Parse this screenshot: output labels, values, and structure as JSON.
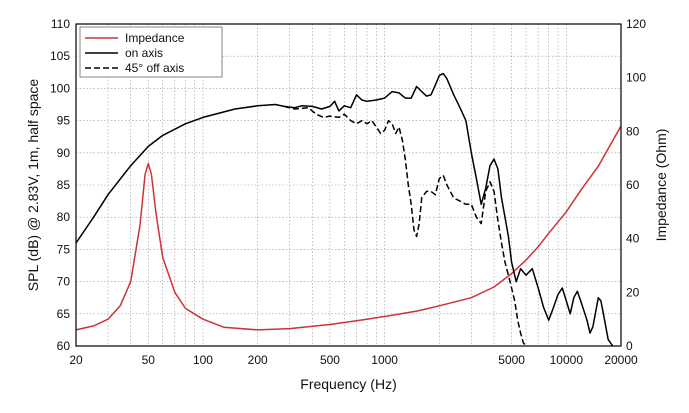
{
  "chart_data": {
    "type": "line",
    "title": "",
    "xlabel": "Frequency (Hz)",
    "ylabel": "SPL (dB) @ 2.83V, 1m, half space",
    "y2label": "Impedance (Ohm)",
    "x_scale": "log",
    "xlim": [
      20,
      20000
    ],
    "ylim": [
      60,
      110
    ],
    "y2lim": [
      0,
      120
    ],
    "grid": true,
    "legend_position": "top-left",
    "x_ticks": [
      20,
      50,
      100,
      200,
      500,
      1000,
      5000,
      10000,
      20000
    ],
    "x_tick_labels": [
      "20",
      "50",
      "100",
      "200",
      "500",
      "1000",
      "5000",
      "10000",
      "20000"
    ],
    "y_ticks": [
      60,
      65,
      70,
      75,
      80,
      85,
      90,
      95,
      100,
      105,
      110
    ],
    "y_tick_labels": [
      "60",
      "65",
      "70",
      "75",
      "80",
      "85",
      "90",
      "95",
      "100",
      "105",
      "110"
    ],
    "y2_ticks": [
      0,
      20,
      40,
      60,
      80,
      100,
      120
    ],
    "y2_tick_labels": [
      "0",
      "20",
      "40",
      "60",
      "80",
      "100",
      "120"
    ],
    "series": [
      {
        "name": "Impedance",
        "axis": "right",
        "color": "#cc3333",
        "style": "solid",
        "points": [
          [
            20,
            6
          ],
          [
            25,
            7.5
          ],
          [
            30,
            10
          ],
          [
            35,
            15
          ],
          [
            40,
            24
          ],
          [
            45,
            45
          ],
          [
            48,
            64
          ],
          [
            50,
            68
          ],
          [
            52,
            64
          ],
          [
            55,
            50
          ],
          [
            60,
            33
          ],
          [
            70,
            20
          ],
          [
            80,
            14
          ],
          [
            100,
            10
          ],
          [
            130,
            7
          ],
          [
            200,
            6
          ],
          [
            300,
            6.5
          ],
          [
            500,
            8
          ],
          [
            800,
            10
          ],
          [
            1000,
            11
          ],
          [
            1500,
            13
          ],
          [
            2000,
            15
          ],
          [
            3000,
            18
          ],
          [
            4000,
            22
          ],
          [
            5000,
            27
          ],
          [
            6000,
            32
          ],
          [
            7000,
            37
          ],
          [
            8000,
            42
          ],
          [
            10000,
            50
          ],
          [
            12000,
            58
          ],
          [
            15000,
            67
          ],
          [
            20000,
            82
          ]
        ]
      },
      {
        "name": "on axis",
        "axis": "left",
        "color": "#000000",
        "style": "solid",
        "points": [
          [
            20,
            76
          ],
          [
            25,
            80
          ],
          [
            30,
            83.5
          ],
          [
            40,
            88
          ],
          [
            50,
            91
          ],
          [
            60,
            92.7
          ],
          [
            80,
            94.5
          ],
          [
            100,
            95.5
          ],
          [
            150,
            96.8
          ],
          [
            200,
            97.3
          ],
          [
            250,
            97.5
          ],
          [
            280,
            97.2
          ],
          [
            320,
            97
          ],
          [
            350,
            97.3
          ],
          [
            400,
            97.2
          ],
          [
            450,
            96.8
          ],
          [
            500,
            97.2
          ],
          [
            530,
            98
          ],
          [
            560,
            96.5
          ],
          [
            600,
            97.3
          ],
          [
            650,
            97
          ],
          [
            700,
            99
          ],
          [
            750,
            98.2
          ],
          [
            800,
            98
          ],
          [
            900,
            98.2
          ],
          [
            1000,
            98.5
          ],
          [
            1100,
            99.5
          ],
          [
            1200,
            99.3
          ],
          [
            1300,
            98.5
          ],
          [
            1400,
            98.5
          ],
          [
            1500,
            100.3
          ],
          [
            1600,
            99.5
          ],
          [
            1700,
            98.8
          ],
          [
            1800,
            99
          ],
          [
            1900,
            100.5
          ],
          [
            2000,
            102
          ],
          [
            2100,
            102.3
          ],
          [
            2200,
            101.5
          ],
          [
            2400,
            99
          ],
          [
            2600,
            97
          ],
          [
            2800,
            95
          ],
          [
            3000,
            90
          ],
          [
            3200,
            86
          ],
          [
            3400,
            82
          ],
          [
            3600,
            84.5
          ],
          [
            3800,
            88
          ],
          [
            4000,
            89
          ],
          [
            4200,
            87.5
          ],
          [
            4400,
            83
          ],
          [
            4600,
            80
          ],
          [
            4800,
            77
          ],
          [
            5000,
            73
          ],
          [
            5300,
            70
          ],
          [
            5600,
            72
          ],
          [
            6000,
            71
          ],
          [
            6500,
            72
          ],
          [
            7000,
            69
          ],
          [
            7500,
            66
          ],
          [
            8000,
            64
          ],
          [
            8500,
            66
          ],
          [
            9000,
            68
          ],
          [
            9500,
            69
          ],
          [
            10000,
            67
          ],
          [
            10500,
            65
          ],
          [
            11000,
            67.5
          ],
          [
            11500,
            68.5
          ],
          [
            12000,
            67
          ],
          [
            13000,
            64
          ],
          [
            13500,
            62
          ],
          [
            14000,
            63
          ],
          [
            15000,
            67.5
          ],
          [
            15500,
            67
          ],
          [
            16000,
            65
          ],
          [
            17000,
            61
          ],
          [
            18000,
            60
          ]
        ]
      },
      {
        "name": "45° off axis",
        "axis": "left",
        "color": "#000000",
        "style": "dashed",
        "points": [
          [
            280,
            97.2
          ],
          [
            320,
            96.8
          ],
          [
            380,
            97
          ],
          [
            420,
            96
          ],
          [
            460,
            95.5
          ],
          [
            500,
            95.7
          ],
          [
            560,
            95.5
          ],
          [
            600,
            96
          ],
          [
            650,
            95
          ],
          [
            700,
            94.5
          ],
          [
            750,
            95
          ],
          [
            800,
            94.5
          ],
          [
            850,
            95
          ],
          [
            900,
            94
          ],
          [
            950,
            93
          ],
          [
            1000,
            93.5
          ],
          [
            1050,
            95
          ],
          [
            1100,
            94.5
          ],
          [
            1150,
            93
          ],
          [
            1200,
            94
          ],
          [
            1250,
            92
          ],
          [
            1300,
            89
          ],
          [
            1350,
            85
          ],
          [
            1400,
            82
          ],
          [
            1450,
            78
          ],
          [
            1500,
            77
          ],
          [
            1550,
            79
          ],
          [
            1600,
            83
          ],
          [
            1700,
            84
          ],
          [
            1800,
            84
          ],
          [
            1900,
            83.5
          ],
          [
            2000,
            86
          ],
          [
            2100,
            86.5
          ],
          [
            2200,
            85
          ],
          [
            2400,
            83
          ],
          [
            2600,
            82.5
          ],
          [
            2800,
            82
          ],
          [
            3000,
            82
          ],
          [
            3200,
            80
          ],
          [
            3400,
            79
          ],
          [
            3600,
            84
          ],
          [
            3800,
            85.5
          ],
          [
            4000,
            84
          ],
          [
            4200,
            79.5
          ],
          [
            4400,
            76
          ],
          [
            4600,
            73
          ],
          [
            4800,
            71
          ],
          [
            5000,
            69
          ],
          [
            5200,
            67
          ],
          [
            5400,
            64
          ],
          [
            5600,
            62
          ],
          [
            5800,
            60.5
          ],
          [
            6000,
            60
          ]
        ]
      }
    ]
  }
}
